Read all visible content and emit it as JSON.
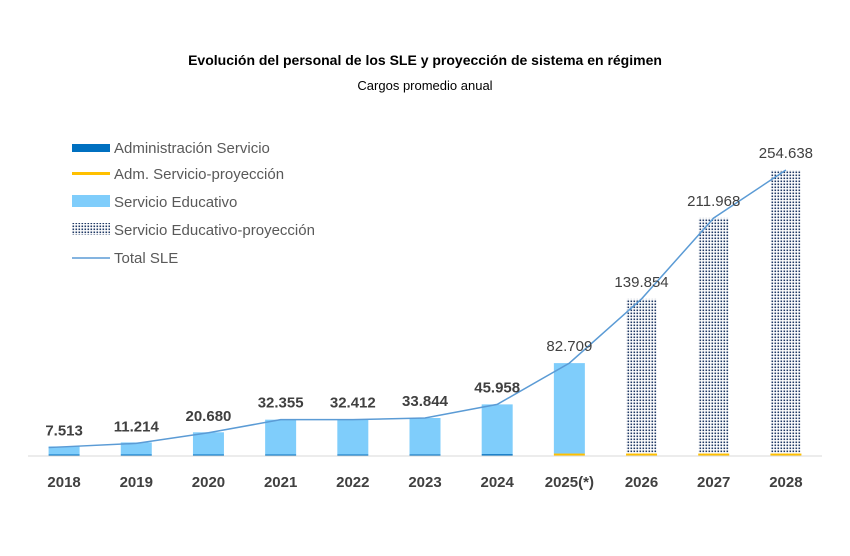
{
  "chart_data": {
    "type": "bar",
    "title": "Evolución del personal de los SLE y proyección de sistema en régimen",
    "subtitle": "Cargos promedio anual",
    "categories": [
      "2018",
      "2019",
      "2020",
      "2021",
      "2022",
      "2023",
      "2024",
      "2025(*)",
      "2026",
      "2027",
      "2028"
    ],
    "series": [
      {
        "name": "Administración Servicio",
        "kind": "bar",
        "values": [
          300,
          450,
          900,
          1400,
          1400,
          1500,
          1700,
          null,
          null,
          null,
          null
        ]
      },
      {
        "name": "Adm. Servicio-proyección",
        "kind": "bar",
        "values": [
          null,
          null,
          null,
          null,
          null,
          null,
          null,
          2200,
          2200,
          2200,
          2200
        ]
      },
      {
        "name": "Servicio Educativo",
        "kind": "bar",
        "values": [
          7213,
          10764,
          19780,
          30955,
          31012,
          32344,
          44258,
          80509,
          null,
          null,
          null
        ]
      },
      {
        "name": "Servicio Educativo-proyección",
        "kind": "bar",
        "values": [
          null,
          null,
          null,
          null,
          null,
          null,
          null,
          null,
          137654,
          209768,
          252438
        ]
      },
      {
        "name": "Total SLE",
        "kind": "line",
        "values": [
          7513,
          11214,
          20680,
          32355,
          32412,
          33844,
          45958,
          82709,
          139854,
          211968,
          254638
        ]
      }
    ],
    "data_labels": [
      "7.513",
      "11.214",
      "20.680",
      "32.355",
      "32.412",
      "33.844",
      "45.958",
      "82.709",
      "139.854",
      "211.968",
      "254.638"
    ],
    "ylim": [
      0,
      260000
    ],
    "grid": false,
    "legend": "top-left",
    "colors": {
      "admin": "#0070c0",
      "admin_proj": "#ffc000",
      "educ": "#7fcdfb",
      "educ_proj_dots": "#1f3864",
      "line": "#5b9bd5",
      "axis": "#d9d9d9"
    }
  }
}
